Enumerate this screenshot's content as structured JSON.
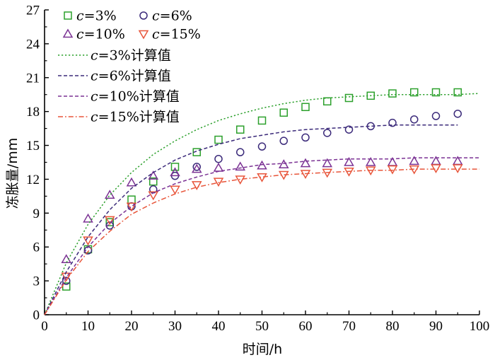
{
  "chart_data": {
    "type": "scatter",
    "xlabel": "时间/h",
    "ylabel": "冻胀量/mm",
    "xlim": [
      0,
      100
    ],
    "ylim": [
      0,
      27
    ],
    "x_ticks": [
      "0",
      "10",
      "20",
      "30",
      "40",
      "50",
      "60",
      "70",
      "80",
      "90",
      "100"
    ],
    "y_ticks": [
      "0",
      "3",
      "6",
      "9",
      "12",
      "15",
      "18",
      "21",
      "24",
      "27"
    ],
    "grid": false,
    "legend_position": "top-left",
    "series": [
      {
        "name": "c=3%",
        "kind": "measured",
        "marker": "square",
        "color": "#2ca02c",
        "x": [
          0,
          5,
          10,
          15,
          20,
          25,
          30,
          35,
          40,
          45,
          50,
          55,
          60,
          65,
          70,
          75,
          80,
          85,
          90,
          95
        ],
        "y": [
          0,
          2.5,
          5.8,
          8.2,
          10.2,
          11.8,
          13.1,
          14.4,
          15.5,
          16.4,
          17.2,
          17.9,
          18.4,
          18.9,
          19.2,
          19.4,
          19.6,
          19.7,
          19.7,
          19.7
        ]
      },
      {
        "name": "c=6%",
        "kind": "measured",
        "marker": "circle",
        "color": "#3b2a7a",
        "x": [
          0,
          5,
          10,
          15,
          20,
          25,
          30,
          35,
          40,
          45,
          50,
          55,
          60,
          65,
          70,
          75,
          80,
          85,
          90,
          95
        ],
        "y": [
          0,
          3.0,
          5.7,
          7.9,
          9.6,
          11.1,
          12.3,
          13.1,
          13.8,
          14.4,
          14.9,
          15.4,
          15.7,
          16.1,
          16.4,
          16.7,
          17.0,
          17.3,
          17.6,
          17.8
        ]
      },
      {
        "name": "c=10%",
        "kind": "measured",
        "marker": "triangle-up",
        "color": "#7b3294",
        "x": [
          0,
          5,
          10,
          15,
          20,
          25,
          30,
          35,
          40,
          45,
          50,
          55,
          60,
          65,
          70,
          75,
          80,
          85,
          90,
          95
        ],
        "y": [
          0,
          4.9,
          8.5,
          10.6,
          11.7,
          12.3,
          12.6,
          12.9,
          13.0,
          13.1,
          13.2,
          13.3,
          13.4,
          13.4,
          13.5,
          13.5,
          13.5,
          13.6,
          13.6,
          13.6
        ]
      },
      {
        "name": "c=15%",
        "kind": "measured",
        "marker": "triangle-down",
        "color": "#e8553a",
        "x": [
          0,
          5,
          10,
          15,
          20,
          25,
          30,
          35,
          40,
          45,
          50,
          55,
          60,
          65,
          70,
          75,
          80,
          85,
          90,
          95
        ],
        "y": [
          0,
          3.4,
          6.6,
          8.4,
          9.6,
          10.6,
          11.1,
          11.5,
          11.8,
          12.0,
          12.2,
          12.4,
          12.5,
          12.6,
          12.7,
          12.8,
          12.9,
          12.9,
          13.0,
          13.0
        ]
      },
      {
        "name": "c=3%计算值",
        "kind": "computed",
        "dash": "dotted",
        "color": "#2ca02c",
        "x": [
          0,
          5,
          10,
          15,
          20,
          25,
          30,
          35,
          40,
          45,
          50,
          55,
          60,
          65,
          70,
          75,
          80,
          85,
          90,
          95,
          100
        ],
        "y": [
          0,
          4.6,
          8.0,
          10.6,
          12.6,
          14.2,
          15.4,
          16.4,
          17.2,
          17.8,
          18.3,
          18.7,
          19.0,
          19.2,
          19.3,
          19.4,
          19.5,
          19.5,
          19.5,
          19.5,
          19.6
        ]
      },
      {
        "name": "c=6%计算值",
        "kind": "computed",
        "dash": "dashed",
        "color": "#3b2a7a",
        "x": [
          0,
          5,
          10,
          15,
          20,
          25,
          30,
          35,
          40,
          45,
          50,
          55,
          60,
          65,
          70,
          75,
          80,
          85,
          90,
          95
        ],
        "y": [
          0,
          3.8,
          6.9,
          9.3,
          11.2,
          12.6,
          13.7,
          14.5,
          15.1,
          15.6,
          15.9,
          16.2,
          16.4,
          16.5,
          16.6,
          16.7,
          16.8,
          16.8,
          16.8,
          16.8
        ]
      },
      {
        "name": "c=10%计算值",
        "kind": "computed",
        "dash": "dashed",
        "color": "#7b3294",
        "x": [
          0,
          5,
          10,
          15,
          20,
          25,
          30,
          35,
          40,
          45,
          50,
          55,
          60,
          65,
          70,
          75,
          80,
          85,
          90,
          95,
          100
        ],
        "y": [
          0,
          3.3,
          6.0,
          8.1,
          9.6,
          10.8,
          11.6,
          12.2,
          12.7,
          13.0,
          13.3,
          13.4,
          13.6,
          13.7,
          13.8,
          13.8,
          13.8,
          13.9,
          13.9,
          13.9,
          13.9
        ]
      },
      {
        "name": "c=15%计算值",
        "kind": "computed",
        "dash": "dashdot",
        "color": "#e8553a",
        "x": [
          0,
          5,
          10,
          15,
          20,
          25,
          30,
          35,
          40,
          45,
          50,
          55,
          60,
          65,
          70,
          75,
          80,
          85,
          90,
          95,
          100
        ],
        "y": [
          0,
          3.1,
          5.6,
          7.4,
          8.9,
          9.9,
          10.7,
          11.3,
          11.7,
          12.0,
          12.2,
          12.4,
          12.5,
          12.6,
          12.7,
          12.8,
          12.8,
          12.9,
          12.9,
          12.9,
          12.9
        ]
      }
    ]
  }
}
